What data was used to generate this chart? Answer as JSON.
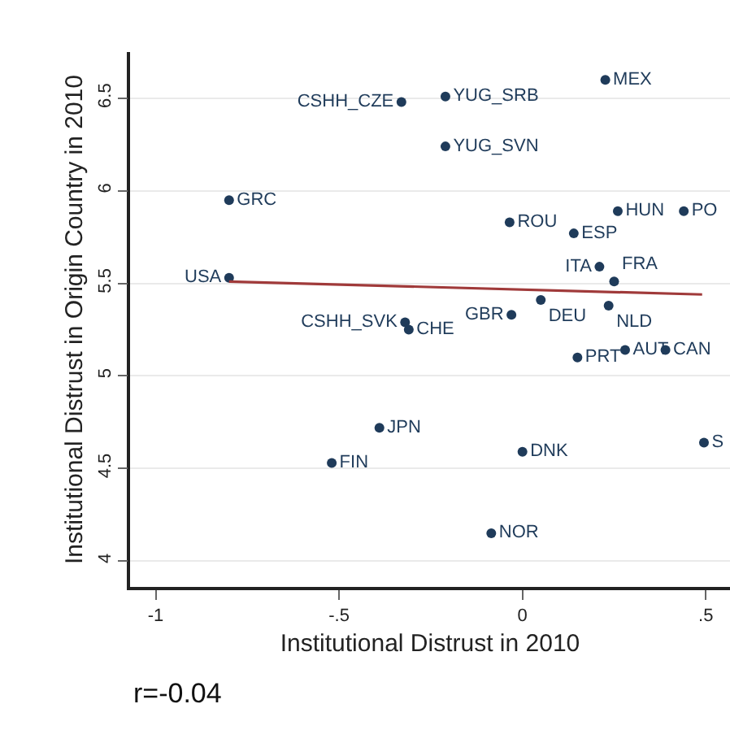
{
  "chart_data": {
    "type": "scatter",
    "xlabel": "Institutional Distrust in 2010",
    "ylabel": "Institutional Distrust in Origin Country in 2010",
    "xlim": [
      -1.07,
      0.566
    ],
    "ylim": [
      3.86,
      6.75
    ],
    "xticks": [
      {
        "value": -1,
        "label": "-1"
      },
      {
        "value": -0.5,
        "label": "-.5"
      },
      0,
      {
        "value": 0.5,
        "label": ".5"
      }
    ],
    "yticks": [
      4,
      4.5,
      5,
      5.5,
      6,
      6.5
    ],
    "grid": "y",
    "marker": "circle",
    "legend": false,
    "annotations": [
      "r=-0.04"
    ],
    "series": [
      {
        "name": "MEX",
        "color": "#1f3b5a",
        "x": [
          0.226
        ],
        "values": [
          6.6
        ]
      },
      {
        "name": "YUG_SRB",
        "color": "#1f3b5a",
        "x": [
          -0.21
        ],
        "values": [
          6.51
        ]
      },
      {
        "name": "CSHH_CZE",
        "color": "#1f3b5a",
        "x": [
          -0.33
        ],
        "values": [
          6.48
        ]
      },
      {
        "name": "YUG_SVN",
        "color": "#1f3b5a",
        "x": [
          -0.21
        ],
        "values": [
          6.24
        ]
      },
      {
        "name": "GRC",
        "color": "#1f3b5a",
        "x": [
          -0.8
        ],
        "values": [
          5.95
        ]
      },
      {
        "name": "ROU",
        "color": "#1f3b5a",
        "x": [
          -0.035
        ],
        "values": [
          5.83
        ]
      },
      {
        "name": "ESP",
        "color": "#1f3b5a",
        "x": [
          0.14
        ],
        "values": [
          5.77
        ]
      },
      {
        "name": "HUN",
        "color": "#1f3b5a",
        "x": [
          0.26
        ],
        "values": [
          5.89
        ]
      },
      {
        "name": "PO",
        "color": "#1f3b5a",
        "x": [
          0.44
        ],
        "values": [
          5.89
        ]
      },
      {
        "name": "ITA",
        "color": "#1f3b5a",
        "x": [
          0.21
        ],
        "values": [
          5.59
        ]
      },
      {
        "name": "FRA",
        "color": "#1f3b5a",
        "x": [
          0.25
        ],
        "values": [
          5.51
        ]
      },
      {
        "name": "USA",
        "color": "#1f3b5a",
        "x": [
          -0.8
        ],
        "values": [
          5.53
        ]
      },
      {
        "name": "DEU",
        "color": "#1f3b5a",
        "x": [
          0.05
        ],
        "values": [
          5.41
        ]
      },
      {
        "name": "NLD",
        "color": "#1f3b5a",
        "x": [
          0.235
        ],
        "values": [
          5.38
        ]
      },
      {
        "name": "GBR",
        "color": "#1f3b5a",
        "x": [
          -0.03
        ],
        "values": [
          5.33
        ]
      },
      {
        "name": "CSHH_SVK",
        "color": "#1f3b5a",
        "x": [
          -0.32
        ],
        "values": [
          5.29
        ]
      },
      {
        "name": "CHE",
        "color": "#1f3b5a",
        "x": [
          -0.31
        ],
        "values": [
          5.25
        ]
      },
      {
        "name": "PRT",
        "color": "#1f3b5a",
        "x": [
          0.15
        ],
        "values": [
          5.1
        ]
      },
      {
        "name": "AUT",
        "color": "#1f3b5a",
        "x": [
          0.28
        ],
        "values": [
          5.14
        ]
      },
      {
        "name": "CAN",
        "color": "#1f3b5a",
        "x": [
          0.39
        ],
        "values": [
          5.14
        ]
      },
      {
        "name": "JPN",
        "color": "#1f3b5a",
        "x": [
          -0.39
        ],
        "values": [
          4.72
        ]
      },
      {
        "name": "FIN",
        "color": "#1f3b5a",
        "x": [
          -0.52
        ],
        "values": [
          4.53
        ]
      },
      {
        "name": "DNK",
        "color": "#1f3b5a",
        "x": [
          0.0
        ],
        "values": [
          4.59
        ]
      },
      {
        "name": "S",
        "color": "#1f3b5a",
        "x": [
          0.495
        ],
        "values": [
          4.64
        ]
      },
      {
        "name": "NOR",
        "color": "#1f3b5a",
        "x": [
          -0.085
        ],
        "values": [
          4.15
        ]
      },
      {
        "type": "line",
        "color": "#a03a3a",
        "x": [
          -0.8,
          0.49
        ],
        "values": [
          5.51,
          5.44
        ],
        "marker": "none"
      }
    ]
  }
}
